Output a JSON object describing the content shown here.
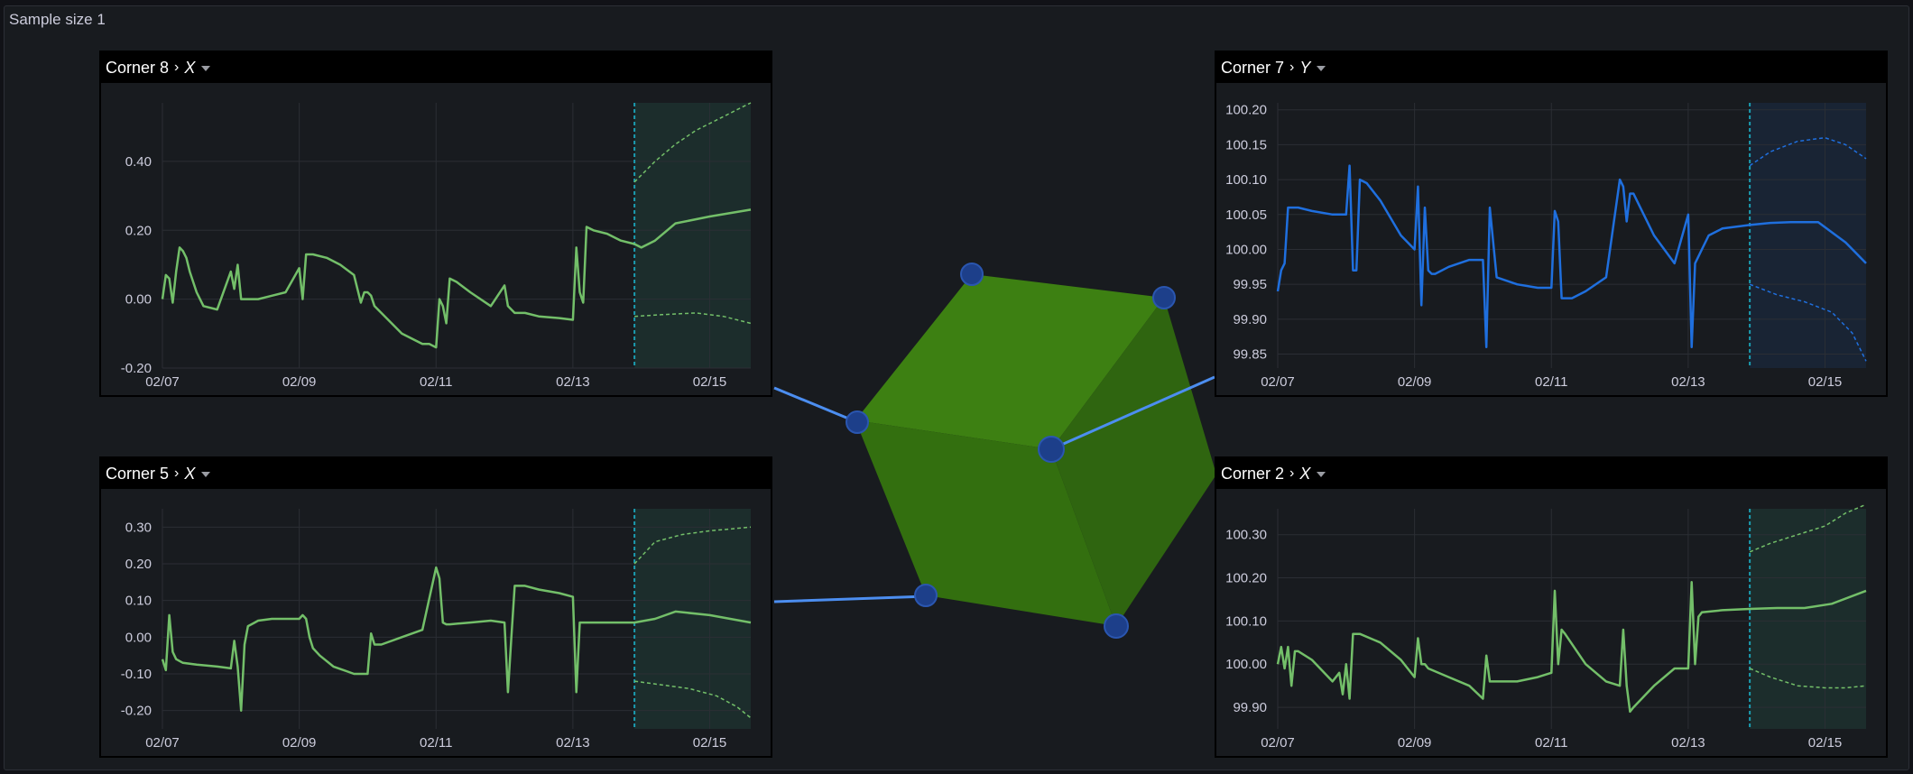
{
  "frame": {
    "title": "Sample size 1"
  },
  "colors": {
    "green": "#73bf69",
    "blue": "#1f6fde",
    "cube_face": "#3d7f13",
    "connector": "#4c8ef0",
    "marker": "#1d3f8a",
    "forecast_border": "#1a9cb0"
  },
  "cube": {
    "markers": 6,
    "icon": "cube-icon"
  },
  "panels": [
    {
      "id": "p8",
      "corner": "Corner 8",
      "axis": "X",
      "chart_data": {
        "type": "line",
        "color": "green",
        "x_ticks": [
          "02/07",
          "02/09",
          "02/11",
          "02/13",
          "02/15"
        ],
        "y_ticks": [
          "0.40",
          "0.20",
          "0.00",
          "-0.20"
        ],
        "ylim": [
          -0.2,
          0.57
        ],
        "x_range_days": [
          0,
          8.6
        ],
        "forecast_start": 6.9,
        "series": [
          {
            "x": [
              0,
              0.05,
              0.1,
              0.15,
              0.2,
              0.25,
              0.3,
              0.35,
              0.4,
              0.5,
              0.6,
              0.8,
              1.0,
              1.05,
              1.1,
              1.15,
              1.2,
              1.25,
              1.3,
              1.35,
              1.4,
              1.6,
              1.8,
              2.0,
              2.05,
              2.1,
              2.15,
              2.2,
              2.4,
              2.6,
              2.8,
              2.9,
              2.95,
              3.0,
              3.05,
              3.1,
              3.2,
              3.5,
              3.8,
              3.9,
              4.0,
              4.05,
              4.1,
              4.15,
              4.2,
              4.3,
              4.5,
              4.8,
              5.0,
              5.05,
              5.1,
              5.15,
              5.2,
              5.3,
              5.5,
              5.8,
              6.0,
              6.05,
              6.1,
              6.15,
              6.2,
              6.3,
              6.5,
              6.7,
              6.9,
              7.0,
              7.2,
              7.5,
              8.0,
              8.6
            ],
            "y": [
              0,
              0.07,
              0.06,
              -0.01,
              0.08,
              0.15,
              0.14,
              0.12,
              0.08,
              0.02,
              -0.02,
              -0.03,
              0.08,
              0.03,
              0.1,
              0.0,
              0.0,
              0.0,
              0.0,
              0.0,
              0.0,
              0.01,
              0.02,
              0.09,
              0.0,
              0.13,
              0.13,
              0.13,
              0.12,
              0.1,
              0.07,
              -0.01,
              0.02,
              0.02,
              0.01,
              -0.02,
              -0.04,
              -0.1,
              -0.13,
              -0.13,
              -0.14,
              0.0,
              -0.02,
              -0.07,
              0.06,
              0.05,
              0.02,
              -0.02,
              0.04,
              -0.02,
              -0.03,
              -0.04,
              -0.04,
              -0.04,
              -0.05,
              -0.055,
              -0.06,
              0.15,
              0.02,
              -0.01,
              0.21,
              0.2,
              0.19,
              0.17,
              0.16,
              0.15,
              0.17,
              0.22,
              0.24,
              0.26
            ]
          }
        ],
        "upper": {
          "x": [
            6.9,
            7.2,
            7.5,
            7.8,
            8.1,
            8.4,
            8.6
          ],
          "y": [
            0.34,
            0.4,
            0.45,
            0.49,
            0.52,
            0.55,
            0.57
          ]
        },
        "lower": {
          "x": [
            6.9,
            7.3,
            7.8,
            8.2,
            8.6
          ],
          "y": [
            -0.05,
            -0.045,
            -0.04,
            -0.05,
            -0.07
          ]
        }
      }
    },
    {
      "id": "p7",
      "corner": "Corner 7",
      "axis": "Y",
      "chart_data": {
        "type": "line",
        "color": "blue",
        "x_ticks": [
          "02/07",
          "02/09",
          "02/11",
          "02/13",
          "02/15"
        ],
        "y_ticks": [
          "100.20",
          "100.15",
          "100.10",
          "100.05",
          "100.00",
          "99.95",
          "99.90",
          "99.85"
        ],
        "ylim": [
          99.83,
          100.21
        ],
        "x_range_days": [
          0,
          8.6
        ],
        "forecast_start": 6.9,
        "series": [
          {
            "x": [
              0,
              0.05,
              0.1,
              0.15,
              0.2,
              0.3,
              0.5,
              0.8,
              1.0,
              1.05,
              1.1,
              1.15,
              1.2,
              1.3,
              1.5,
              1.8,
              2.0,
              2.05,
              2.1,
              2.15,
              2.2,
              2.25,
              2.3,
              2.5,
              2.8,
              3.0,
              3.05,
              3.1,
              3.2,
              3.5,
              3.8,
              4.0,
              4.05,
              4.1,
              4.15,
              4.2,
              4.3,
              4.5,
              4.8,
              5.0,
              5.05,
              5.1,
              5.15,
              5.2,
              5.3,
              5.5,
              5.8,
              6.0,
              6.05,
              6.1,
              6.15,
              6.2,
              6.3,
              6.5,
              6.9,
              7.2,
              7.5,
              7.9,
              8.3,
              8.6
            ],
            "y": [
              99.94,
              99.97,
              99.98,
              100.06,
              100.06,
              100.06,
              100.055,
              100.05,
              100.05,
              100.12,
              99.97,
              99.97,
              100.1,
              100.095,
              100.07,
              100.02,
              100.0,
              100.09,
              99.92,
              100.06,
              99.97,
              99.965,
              99.965,
              99.975,
              99.985,
              99.985,
              99.86,
              100.06,
              99.96,
              99.95,
              99.945,
              99.945,
              100.055,
              100.04,
              99.93,
              99.93,
              99.93,
              99.94,
              99.96,
              100.1,
              100.09,
              100.04,
              100.08,
              100.08,
              100.06,
              100.02,
              99.98,
              100.05,
              99.86,
              99.98,
              99.99,
              100.0,
              100.02,
              100.03,
              100.035,
              100.038,
              100.039,
              100.039,
              100.01,
              99.98
            ]
          }
        ],
        "upper": {
          "x": [
            6.9,
            7.2,
            7.6,
            8.0,
            8.3,
            8.6
          ],
          "y": [
            100.12,
            100.14,
            100.155,
            100.16,
            100.15,
            100.13
          ]
        },
        "lower": {
          "x": [
            6.9,
            7.3,
            7.7,
            8.1,
            8.4,
            8.6
          ],
          "y": [
            99.95,
            99.935,
            99.925,
            99.91,
            99.88,
            99.84
          ]
        }
      }
    },
    {
      "id": "p5",
      "corner": "Corner 5",
      "axis": "X",
      "chart_data": {
        "type": "line",
        "color": "green",
        "x_ticks": [
          "02/07",
          "02/09",
          "02/11",
          "02/13",
          "02/15"
        ],
        "y_ticks": [
          "0.30",
          "0.20",
          "0.10",
          "0.00",
          "-0.10",
          "-0.20"
        ],
        "ylim": [
          -0.25,
          0.35
        ],
        "x_range_days": [
          0,
          8.6
        ],
        "forecast_start": 6.9,
        "series": [
          {
            "x": [
              0,
              0.05,
              0.1,
              0.15,
              0.2,
              0.25,
              0.3,
              0.5,
              0.8,
              1.0,
              1.05,
              1.1,
              1.15,
              1.2,
              1.25,
              1.3,
              1.35,
              1.4,
              1.6,
              1.8,
              2.0,
              2.05,
              2.1,
              2.15,
              2.2,
              2.3,
              2.5,
              2.8,
              3.0,
              3.05,
              3.1,
              3.15,
              3.2,
              3.5,
              3.8,
              4.0,
              4.05,
              4.1,
              4.15,
              4.2,
              4.5,
              4.8,
              5.0,
              5.05,
              5.1,
              5.15,
              5.2,
              5.3,
              5.5,
              5.8,
              6.0,
              6.05,
              6.1,
              6.15,
              6.2,
              6.3,
              6.5,
              6.9,
              7.2,
              7.5,
              8.0,
              8.6
            ],
            "y": [
              -0.06,
              -0.09,
              0.06,
              -0.04,
              -0.06,
              -0.065,
              -0.07,
              -0.075,
              -0.08,
              -0.085,
              -0.01,
              -0.08,
              -0.2,
              -0.02,
              0.03,
              0.035,
              0.04,
              0.045,
              0.05,
              0.05,
              0.05,
              0.06,
              0.05,
              0.0,
              -0.03,
              -0.05,
              -0.08,
              -0.1,
              -0.1,
              0.01,
              -0.02,
              -0.02,
              -0.02,
              0.0,
              0.02,
              0.19,
              0.16,
              0.04,
              0.035,
              0.035,
              0.04,
              0.045,
              0.04,
              -0.15,
              0.0,
              0.14,
              0.14,
              0.14,
              0.13,
              0.12,
              0.11,
              -0.15,
              0.04,
              0.04,
              0.04,
              0.04,
              0.04,
              0.04,
              0.05,
              0.07,
              0.06,
              0.04
            ]
          }
        ],
        "upper": {
          "x": [
            6.9,
            7.2,
            7.6,
            8.0,
            8.3,
            8.6
          ],
          "y": [
            0.2,
            0.26,
            0.28,
            0.29,
            0.295,
            0.3
          ]
        },
        "lower": {
          "x": [
            6.9,
            7.3,
            7.7,
            8.1,
            8.4,
            8.6
          ],
          "y": [
            -0.12,
            -0.13,
            -0.14,
            -0.16,
            -0.19,
            -0.22
          ]
        }
      }
    },
    {
      "id": "p2",
      "corner": "Corner 2",
      "axis": "X",
      "chart_data": {
        "type": "line",
        "color": "green",
        "x_ticks": [
          "02/07",
          "02/09",
          "02/11",
          "02/13",
          "02/15"
        ],
        "y_ticks": [
          "100.30",
          "100.20",
          "100.10",
          "100.00",
          "99.90"
        ],
        "ylim": [
          99.85,
          100.36
        ],
        "x_range_days": [
          0,
          8.6
        ],
        "forecast_start": 6.9,
        "series": [
          {
            "x": [
              0,
              0.05,
              0.1,
              0.15,
              0.2,
              0.25,
              0.3,
              0.5,
              0.8,
              0.9,
              0.95,
              1.0,
              1.05,
              1.1,
              1.2,
              1.5,
              1.8,
              2.0,
              2.05,
              2.1,
              2.15,
              2.2,
              2.5,
              2.8,
              3.0,
              3.05,
              3.1,
              3.15,
              3.2,
              3.5,
              3.8,
              4.0,
              4.05,
              4.1,
              4.15,
              4.2,
              4.5,
              4.8,
              5.0,
              5.05,
              5.1,
              5.15,
              5.2,
              5.5,
              5.8,
              6.0,
              6.05,
              6.1,
              6.15,
              6.2,
              6.5,
              6.9,
              7.3,
              7.7,
              8.1,
              8.6
            ],
            "y": [
              100.0,
              100.04,
              99.99,
              100.04,
              99.95,
              100.03,
              100.03,
              100.01,
              99.96,
              99.98,
              99.93,
              100.0,
              99.92,
              100.07,
              100.07,
              100.05,
              100.01,
              99.97,
              100.06,
              100.0,
              100.0,
              99.99,
              99.97,
              99.95,
              99.92,
              100.02,
              99.96,
              99.96,
              99.96,
              99.96,
              99.97,
              99.98,
              100.17,
              100.0,
              100.08,
              100.07,
              100.0,
              99.96,
              99.95,
              100.08,
              99.95,
              99.89,
              99.9,
              99.95,
              99.99,
              99.99,
              100.19,
              100.0,
              100.11,
              100.12,
              100.125,
              100.128,
              100.13,
              100.13,
              100.14,
              100.17
            ]
          }
        ],
        "upper": {
          "x": [
            6.9,
            7.2,
            7.6,
            8.0,
            8.3,
            8.6
          ],
          "y": [
            100.26,
            100.28,
            100.3,
            100.32,
            100.35,
            100.37
          ]
        },
        "lower": {
          "x": [
            6.9,
            7.2,
            7.6,
            8.0,
            8.3,
            8.6
          ],
          "y": [
            99.99,
            99.97,
            99.95,
            99.945,
            99.945,
            99.95
          ]
        }
      }
    }
  ]
}
